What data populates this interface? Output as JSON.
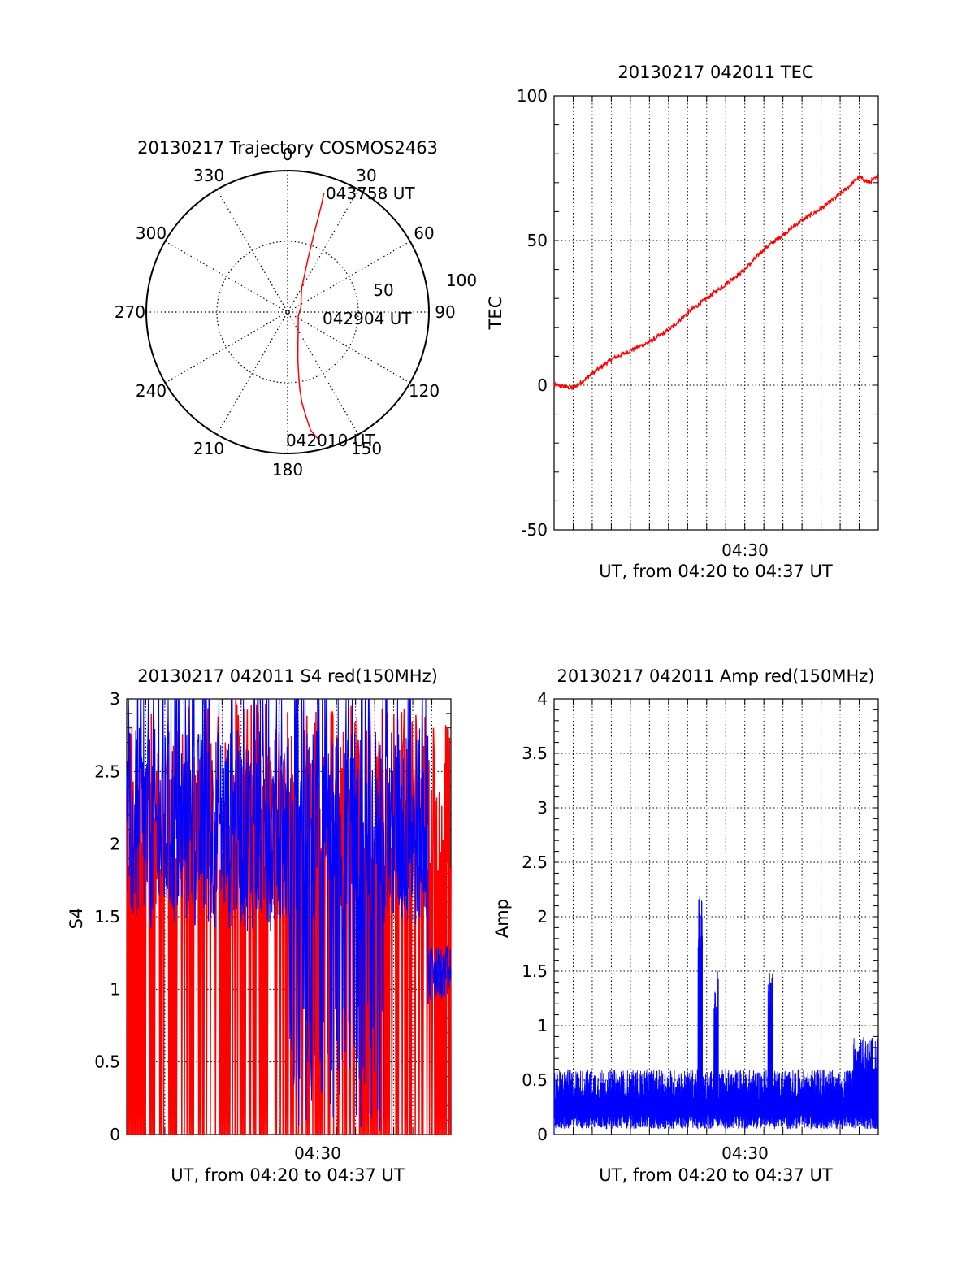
{
  "colors": {
    "axis": "#000000",
    "grid": "#000000",
    "trace_red": "#ff0000",
    "trace_blue": "#0000ff",
    "background": "#ffffff"
  },
  "chart_data": [
    {
      "id": "trajectory",
      "type": "scatter",
      "subtype": "polar",
      "title": "20130217 Trajectory COSMOS2463",
      "azimuth_ticks": [
        "0",
        "30",
        "60",
        "90",
        "120",
        "150",
        "180",
        "210",
        "240",
        "270",
        "300",
        "330"
      ],
      "radial_ticks": [
        "50",
        "100"
      ],
      "grid": true,
      "time_labels": [
        "043758 UT",
        "042904 UT",
        "042010 UT"
      ],
      "series": [
        {
          "color": "#ff0000",
          "points_az_zenith": [
            [
              166,
              94
            ],
            [
              169,
              85
            ],
            [
              170,
              75
            ],
            [
              171,
              65
            ],
            [
              171,
              55
            ],
            [
              170,
              45
            ],
            [
              168,
              35
            ],
            [
              163,
              25
            ],
            [
              150,
              15
            ],
            [
              110,
              8
            ],
            [
              70,
              10
            ],
            [
              40,
              15
            ],
            [
              30,
              20
            ],
            [
              24,
              30
            ],
            [
              21,
              40
            ],
            [
              19.5,
              50
            ],
            [
              18.5,
              60
            ],
            [
              18,
              70
            ],
            [
              17.5,
              80
            ],
            [
              17,
              88
            ]
          ]
        }
      ]
    },
    {
      "id": "tec",
      "type": "line",
      "title": "20130217 042011 TEC",
      "xlabel": "UT, from 04:20 to 04:37 UT",
      "ylabel": "TEC",
      "x_range": [
        "04:20",
        "04:37"
      ],
      "x_ticks": [
        "04:30"
      ],
      "ylim": [
        -50,
        100
      ],
      "y_ticks": [
        "-50",
        "0",
        "50",
        "100"
      ],
      "grid": true,
      "series": [
        {
          "color": "#ff0000",
          "x": [
            "04:20",
            "04:21",
            "04:22",
            "04:23",
            "04:24",
            "04:25",
            "04:26",
            "04:27",
            "04:28",
            "04:29",
            "04:30",
            "04:31",
            "04:32",
            "04:33",
            "04:34",
            "04:35",
            "04:36",
            "04:36:30",
            "04:37"
          ],
          "values": [
            0,
            -1,
            4,
            9,
            12,
            15,
            19,
            25,
            30,
            35,
            40,
            47,
            52,
            57,
            61,
            66,
            72,
            70,
            72
          ]
        }
      ]
    },
    {
      "id": "s4",
      "type": "line",
      "title": "20130217 042011 S4 red(150MHz)",
      "xlabel": "UT, from 04:20 to 04:37 UT",
      "ylabel": "S4",
      "x_range": [
        "04:20",
        "04:37"
      ],
      "x_ticks": [
        "04:30"
      ],
      "ylim": [
        0,
        3
      ],
      "y_ticks": [
        "0",
        "0.5",
        "1",
        "1.5",
        "2",
        "2.5",
        "3"
      ],
      "grid": true,
      "series": [
        {
          "color": "#ff0000",
          "description_values": "fluctuating 0–3 over full interval"
        },
        {
          "color": "#0000ff",
          "description_values": "mostly 1.5–3, dips near 04:29–04:33, ~1.1 at end"
        }
      ]
    },
    {
      "id": "amp",
      "type": "line",
      "title": "20130217 042011 Amp red(150MHz)",
      "xlabel": "UT, from 04:20 to 04:37 UT",
      "ylabel": "Amp",
      "x_range": [
        "04:20",
        "04:37"
      ],
      "x_ticks": [
        "04:30"
      ],
      "ylim": [
        0,
        4
      ],
      "y_ticks": [
        "0",
        "0.5",
        "1",
        "1.5",
        "2",
        "2.5",
        "3",
        "3.5",
        "4"
      ],
      "grid": true,
      "series": [
        {
          "color": "#0000ff",
          "x": [
            "04:20",
            "04:22",
            "04:24",
            "04:26",
            "04:27:40",
            "04:28",
            "04:28:30",
            "04:29",
            "04:30",
            "04:31",
            "04:31:20",
            "04:32",
            "04:34",
            "04:35",
            "04:36",
            "04:37"
          ],
          "values": [
            0.6,
            0.55,
            0.5,
            0.5,
            2.2,
            0.5,
            1.5,
            0.45,
            0.5,
            0.7,
            1.5,
            0.45,
            0.4,
            0.35,
            0.8,
            0.85
          ]
        }
      ]
    }
  ]
}
